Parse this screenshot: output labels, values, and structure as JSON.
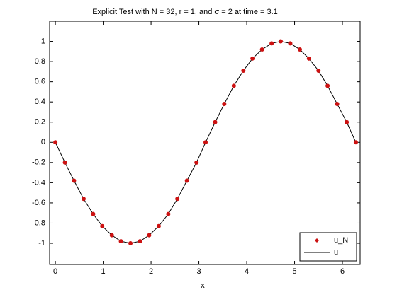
{
  "chart_data": {
    "type": "line",
    "title": "Explicit Test with N = 32, r = 1, and σ = 2 at time = 3.1",
    "x_label": "x",
    "x": [
      0,
      0.2,
      0.39,
      0.59,
      0.79,
      0.98,
      1.18,
      1.37,
      1.57,
      1.77,
      1.96,
      2.16,
      2.36,
      2.55,
      2.75,
      2.95,
      3.14,
      3.34,
      3.53,
      3.73,
      3.93,
      4.12,
      4.32,
      4.52,
      4.71,
      4.91,
      5.11,
      5.3,
      5.5,
      5.69,
      5.89,
      6.09,
      6.28
    ],
    "series": [
      {
        "name": "u_N",
        "color": "#cc1111",
        "style": "markers",
        "values": [
          0,
          -0.2,
          -0.38,
          -0.56,
          -0.71,
          -0.83,
          -0.92,
          -0.98,
          -1,
          -0.98,
          -0.92,
          -0.83,
          -0.71,
          -0.56,
          -0.38,
          -0.2,
          0,
          0.2,
          0.38,
          0.56,
          0.71,
          0.83,
          0.92,
          0.98,
          1,
          0.98,
          0.92,
          0.83,
          0.71,
          0.56,
          0.38,
          0.2,
          0
        ]
      },
      {
        "name": "u",
        "color": "#000000",
        "style": "line",
        "values": [
          0,
          -0.2,
          -0.38,
          -0.56,
          -0.71,
          -0.83,
          -0.92,
          -0.98,
          -1,
          -0.98,
          -0.92,
          -0.83,
          -0.71,
          -0.56,
          -0.38,
          -0.2,
          0,
          0.2,
          0.38,
          0.56,
          0.71,
          0.83,
          0.92,
          0.98,
          1,
          0.98,
          0.92,
          0.83,
          0.71,
          0.56,
          0.38,
          0.2,
          0
        ]
      }
    ],
    "xlim": [
      -0.12,
      6.37
    ],
    "ylim": [
      -1.21,
      1.2
    ],
    "xticks": [
      0,
      1,
      2,
      3,
      4,
      5,
      6
    ],
    "yticks": [
      -1,
      -0.8,
      -0.6,
      -0.4,
      -0.2,
      0,
      0.2,
      0.4,
      0.6,
      0.8,
      1
    ],
    "grid": false,
    "legend": "lower right"
  }
}
